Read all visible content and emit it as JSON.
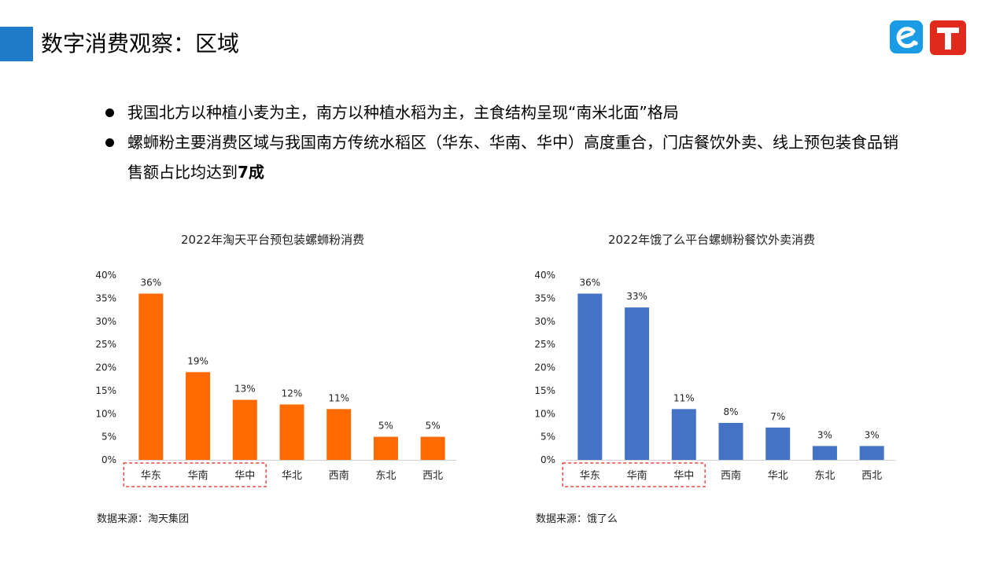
{
  "header": {
    "title": "数字消费观察：区域",
    "accent_color": "#1f7bc8",
    "logos": [
      "eleme-logo",
      "taotian-logo"
    ]
  },
  "bullets": [
    {
      "text": "我国北方以种植小麦为主，南方以种植水稻为主，主食结构呈现“南米北面”格局",
      "bold": ""
    },
    {
      "text": "螺蛳粉主要消费区域与我国南方传统水稻区（华东、华南、华中）高度重合，门店餐饮外卖、线上预包装食品销售额占比均达到",
      "bold": "7成"
    }
  ],
  "chart_data": [
    {
      "type": "bar",
      "title": "2022年淘天平台预包装螺蛳粉消费",
      "categories": [
        "华东",
        "华南",
        "华中",
        "华北",
        "西南",
        "东北",
        "西北"
      ],
      "values": [
        36,
        19,
        13,
        12,
        11,
        5,
        5
      ],
      "value_labels": [
        "36%",
        "19%",
        "13%",
        "12%",
        "11%",
        "5%",
        "5%"
      ],
      "ylim": [
        0,
        40
      ],
      "yticks": [
        "0%",
        "5%",
        "10%",
        "15%",
        "20%",
        "25%",
        "30%",
        "35%",
        "40%"
      ],
      "color": "#ff6a00",
      "highlight_categories": [
        "华东",
        "华南",
        "华中"
      ],
      "source": "数据来源：淘天集团"
    },
    {
      "type": "bar",
      "title": "2022年饿了么平台螺蛳粉餐饮外卖消费",
      "categories": [
        "华东",
        "华南",
        "华中",
        "西南",
        "华北",
        "东北",
        "西北"
      ],
      "values": [
        36,
        33,
        11,
        8,
        7,
        3,
        3
      ],
      "value_labels": [
        "36%",
        "33%",
        "11%",
        "8%",
        "7%",
        "3%",
        "3%"
      ],
      "ylim": [
        0,
        40
      ],
      "yticks": [
        "0%",
        "5%",
        "10%",
        "15%",
        "20%",
        "25%",
        "30%",
        "35%",
        "40%"
      ],
      "color": "#4472c4",
      "highlight_categories": [
        "华东",
        "华南",
        "华中"
      ],
      "source": "数据来源：饿了么"
    }
  ]
}
